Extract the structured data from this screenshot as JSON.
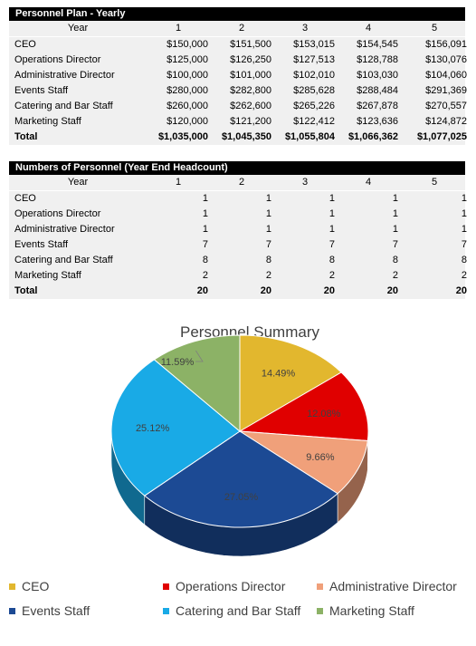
{
  "plan": {
    "title": "Personnel Plan - Yearly",
    "header": [
      "Year",
      "1",
      "2",
      "3",
      "4",
      "5"
    ],
    "rows": [
      [
        "CEO",
        "$150,000",
        "$151,500",
        "$153,015",
        "$154,545",
        "$156,091"
      ],
      [
        "Operations Director",
        "$125,000",
        "$126,250",
        "$127,513",
        "$128,788",
        "$130,076"
      ],
      [
        "Administrative Director",
        "$100,000",
        "$101,000",
        "$102,010",
        "$103,030",
        "$104,060"
      ],
      [
        "Events Staff",
        "$280,000",
        "$282,800",
        "$285,628",
        "$288,484",
        "$291,369"
      ],
      [
        "Catering and Bar Staff",
        "$260,000",
        "$262,600",
        "$265,226",
        "$267,878",
        "$270,557"
      ],
      [
        "Marketing Staff",
        "$120,000",
        "$121,200",
        "$122,412",
        "$123,636",
        "$124,872"
      ]
    ],
    "total": [
      "Total",
      "$1,035,000",
      "$1,045,350",
      "$1,055,804",
      "$1,066,362",
      "$1,077,025"
    ]
  },
  "headcount": {
    "title": "Numbers of Personnel (Year End Headcount)",
    "header": [
      "Year",
      "1",
      "2",
      "3",
      "4",
      "5"
    ],
    "rows": [
      [
        "CEO",
        "1",
        "1",
        "1",
        "1",
        "1"
      ],
      [
        "Operations Director",
        "1",
        "1",
        "1",
        "1",
        "1"
      ],
      [
        "Administrative Director",
        "1",
        "1",
        "1",
        "1",
        "1"
      ],
      [
        "Events Staff",
        "7",
        "7",
        "7",
        "7",
        "7"
      ],
      [
        "Catering and Bar Staff",
        "8",
        "8",
        "8",
        "8",
        "8"
      ],
      [
        "Marketing Staff",
        "2",
        "2",
        "2",
        "2",
        "2"
      ]
    ],
    "total": [
      "Total",
      "20",
      "20",
      "20",
      "20",
      "20"
    ]
  },
  "chart_data": {
    "type": "pie",
    "title": "Personnel Summary",
    "categories": [
      "CEO",
      "Operations Director",
      "Administrative Director",
      "Events Staff",
      "Catering and Bar Staff",
      "Marketing Staff"
    ],
    "values": [
      14.49,
      12.08,
      9.66,
      27.05,
      25.12,
      11.59
    ],
    "labels": [
      "14.49%",
      "12.08%",
      "9.66%",
      "27.05%",
      "25.12%",
      "11.59%"
    ],
    "colors": [
      "#e2b72e",
      "#e00000",
      "#f0a07a",
      "#1c4a94",
      "#19aae6",
      "#8cb266"
    ],
    "legend": "bottom"
  }
}
